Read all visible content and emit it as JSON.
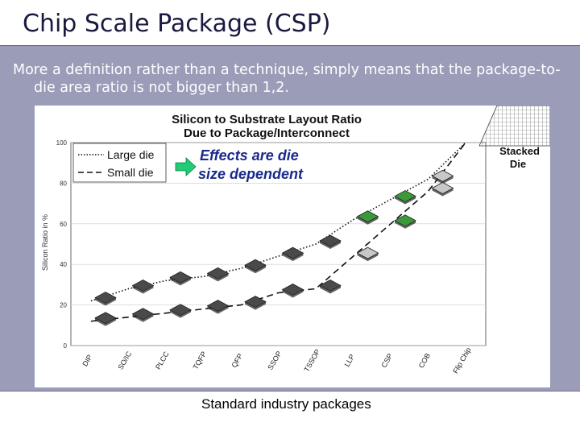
{
  "slide": {
    "title": "Chip Scale Package (CSP)",
    "body_line1": "More a definition rather than a technique, simply means that the package-to-",
    "body_line2": "die area ratio is not bigger than 1,2.",
    "caption": "Standard industry packages"
  },
  "chart_data": {
    "type": "line",
    "title": "Silicon to Substrate Layout Ratio",
    "subtitle": "Due to Package/Interconnect",
    "xlabel": "",
    "ylabel": "Silicon Ratio in %",
    "ylim": [
      0,
      100
    ],
    "yticks": [
      "0",
      "20",
      "40",
      "60",
      "80",
      "100"
    ],
    "categories": [
      "DIP",
      "SO/IC",
      "PLCC",
      "TQFP",
      "QFP",
      "SSOP",
      "TSSOP",
      "LLP",
      "CSP",
      "COB",
      "Flip Chip"
    ],
    "series": [
      {
        "name": "Large die",
        "style": "dotted",
        "values": [
          22,
          28,
          32,
          34,
          38,
          44,
          50,
          62,
          72,
          82,
          100
        ]
      },
      {
        "name": "Small die",
        "style": "dashed",
        "values": [
          12,
          14,
          16,
          18,
          20,
          26,
          28,
          44,
          60,
          76,
          100
        ]
      }
    ],
    "annotations": {
      "effects_line1": "Effects are die",
      "effects_line2": "size dependent",
      "stacked_line1": "Stacked",
      "stacked_line2": "Die"
    },
    "colors": {
      "effects_text": "#1a2a8a",
      "arrow_fill": "#22cc77",
      "band": "#9a9cb8"
    }
  }
}
